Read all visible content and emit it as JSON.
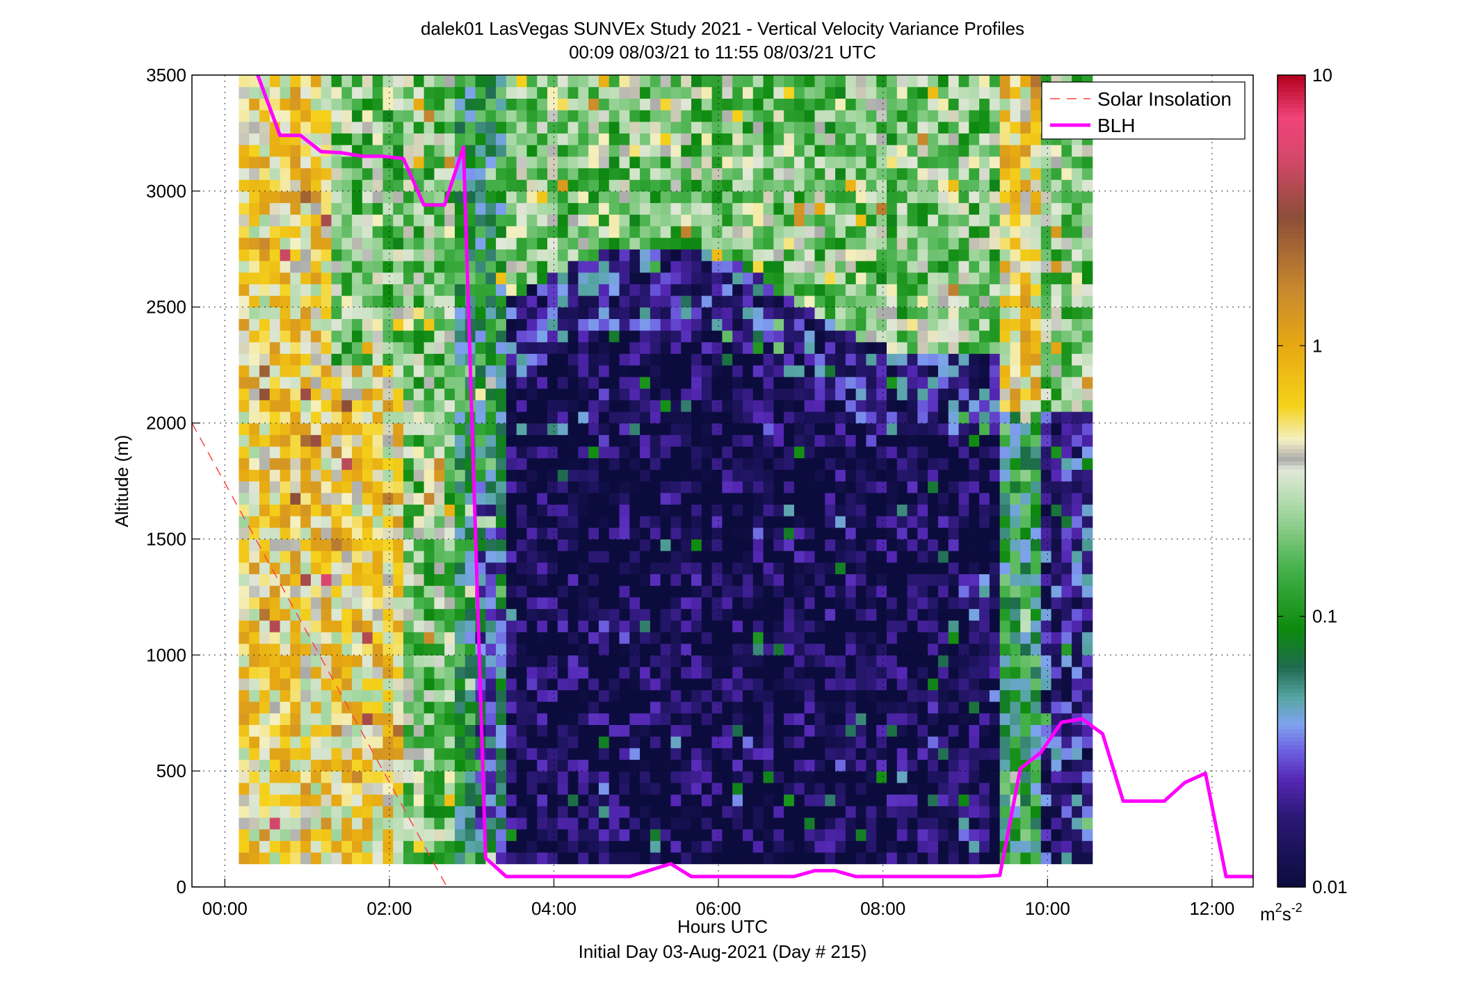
{
  "chart_data": {
    "type": "heatmap",
    "title_line1": "dalek01 LasVegas SUNVEx Study 2021 - Vertical Velocity Variance Profiles",
    "title_line2": "00:09 08/03/21 to 11:55 08/03/21  UTC",
    "xlabel": "Hours UTC",
    "xlabel2": "Initial Day 03-Aug-2021 (Day # 215)",
    "ylabel": "Altitude (m)",
    "colorbar_unit": "m²s⁻²",
    "colorbar_unit_base": "m",
    "colorbar_unit_exp1": "2",
    "colorbar_unit_mid": "s",
    "colorbar_unit_exp2": "-2",
    "xlim_hours": [
      -0.4,
      12.5
    ],
    "ylim": [
      0,
      3500
    ],
    "x_ticks": [
      {
        "value": 0,
        "label": "00:00"
      },
      {
        "value": 2,
        "label": "02:00"
      },
      {
        "value": 4,
        "label": "04:00"
      },
      {
        "value": 6,
        "label": "06:00"
      },
      {
        "value": 8,
        "label": "08:00"
      },
      {
        "value": 10,
        "label": "10:00"
      },
      {
        "value": 12,
        "label": "12:00"
      }
    ],
    "y_ticks": [
      {
        "value": 0,
        "label": "0"
      },
      {
        "value": 500,
        "label": "500"
      },
      {
        "value": 1000,
        "label": "1000"
      },
      {
        "value": 1500,
        "label": "1500"
      },
      {
        "value": 2000,
        "label": "2000"
      },
      {
        "value": 2500,
        "label": "2500"
      },
      {
        "value": 3000,
        "label": "3000"
      },
      {
        "value": 3500,
        "label": "3500"
      }
    ],
    "color_scale": {
      "type": "log",
      "range": [
        0.01,
        10
      ],
      "ticks": [
        {
          "value": 0.01,
          "label": "0.01"
        },
        {
          "value": 0.1,
          "label": "0.1"
        },
        {
          "value": 1,
          "label": "1"
        },
        {
          "value": 10,
          "label": "10"
        }
      ],
      "stops": [
        {
          "v": 0.01,
          "color": "#0b0c3d"
        },
        {
          "v": 0.018,
          "color": "#2a1873"
        },
        {
          "v": 0.025,
          "color": "#5527b5"
        },
        {
          "v": 0.032,
          "color": "#6d60e0"
        },
        {
          "v": 0.04,
          "color": "#7fa3ef"
        },
        {
          "v": 0.05,
          "color": "#58a6a6"
        },
        {
          "v": 0.065,
          "color": "#1f6b4f"
        },
        {
          "v": 0.09,
          "color": "#0d8a0d"
        },
        {
          "v": 0.15,
          "color": "#45b14a"
        },
        {
          "v": 0.25,
          "color": "#a7d8a4"
        },
        {
          "v": 0.35,
          "color": "#e2e8d8"
        },
        {
          "v": 0.38,
          "color": "#aaaaaa"
        },
        {
          "v": 0.45,
          "color": "#f4f0c4"
        },
        {
          "v": 0.6,
          "color": "#f5d21b"
        },
        {
          "v": 1.0,
          "color": "#e7a912"
        },
        {
          "v": 1.6,
          "color": "#c98a2e"
        },
        {
          "v": 3.0,
          "color": "#8c4e38"
        },
        {
          "v": 5.0,
          "color": "#d7476b"
        },
        {
          "v": 7.0,
          "color": "#f0447a"
        },
        {
          "v": 10,
          "color": "#b3001e"
        }
      ]
    },
    "heatmap": {
      "x_start_hours": 0.17,
      "x_step_hours": 0.125,
      "n_cols": 83,
      "y_start_m": 100,
      "y_step_m": 50,
      "n_rows": 68,
      "value_units": "m2 s-2"
    },
    "series": [
      {
        "name": "Solar Insolation",
        "color": "#ff4040",
        "style": "dashed",
        "points": [
          [
            -0.4,
            2000
          ],
          [
            2.7,
            0
          ]
        ]
      },
      {
        "name": "BLH",
        "color": "#ff00ff",
        "style": "solid",
        "points": [
          [
            0.4,
            3500
          ],
          [
            0.67,
            3240
          ],
          [
            0.92,
            3240
          ],
          [
            1.17,
            3170
          ],
          [
            1.42,
            3165
          ],
          [
            1.67,
            3150
          ],
          [
            1.92,
            3150
          ],
          [
            2.17,
            3140
          ],
          [
            2.42,
            2940
          ],
          [
            2.67,
            2940
          ],
          [
            2.9,
            3190
          ],
          [
            3.17,
            125
          ],
          [
            3.42,
            45
          ],
          [
            3.67,
            45
          ],
          [
            4.92,
            45
          ],
          [
            5.42,
            100
          ],
          [
            5.67,
            45
          ],
          [
            6.92,
            45
          ],
          [
            7.17,
            70
          ],
          [
            7.42,
            70
          ],
          [
            7.67,
            45
          ],
          [
            8.92,
            45
          ],
          [
            9.17,
            45
          ],
          [
            9.42,
            50
          ],
          [
            9.67,
            510
          ],
          [
            9.92,
            580
          ],
          [
            10.17,
            710
          ],
          [
            10.42,
            725
          ],
          [
            10.67,
            660
          ],
          [
            10.92,
            370
          ],
          [
            11.17,
            370
          ],
          [
            11.42,
            370
          ],
          [
            11.67,
            450
          ],
          [
            11.92,
            490
          ],
          [
            12.17,
            45
          ],
          [
            12.5,
            45
          ]
        ]
      }
    ],
    "legend": {
      "placement": "top-right",
      "entries": [
        {
          "label": "Solar Insolation",
          "color": "#ff4040",
          "style": "dashed"
        },
        {
          "label": "BLH",
          "color": "#ff00ff",
          "style": "solid"
        }
      ]
    },
    "grid": true
  }
}
